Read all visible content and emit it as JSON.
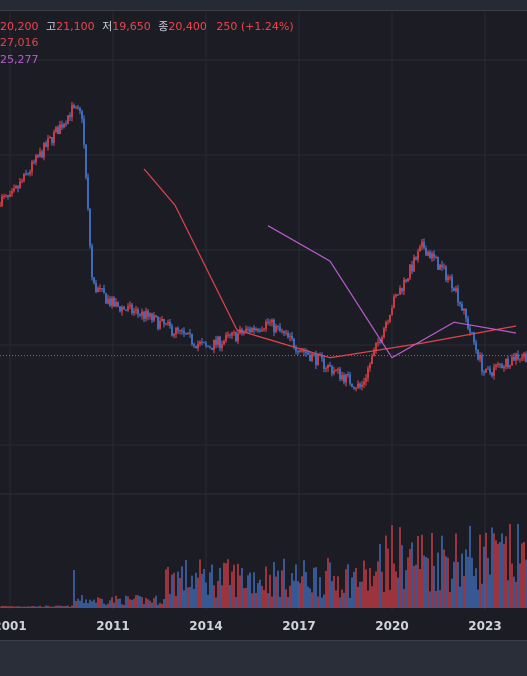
{
  "header": {
    "open_value": "20,200",
    "high_label": "고",
    "high_value": "21,100",
    "low_label": "저",
    "low_value": "19,650",
    "close_label": "종",
    "close_value": "20,400",
    "change": "250 (+1.24%)",
    "ma_values": [
      "27,016",
      "25,277"
    ]
  },
  "colors": {
    "up": "#f0434c",
    "down": "#4a7fe0",
    "ma_long": "#e0444c",
    "ma_mid": "#b85ccc",
    "background": "#1c1d24",
    "text_label": "#cfd3dc"
  },
  "chart_data": {
    "type": "line",
    "title": "",
    "xlabel": "",
    "ylabel": "",
    "x_tick_labels": [
      "2001",
      "2011",
      "2014",
      "2017",
      "2020",
      "2023"
    ],
    "price_approx": {
      "x": [
        "2001",
        "2005",
        "2007",
        "2008",
        "2009",
        "2011",
        "2012",
        "2014",
        "2016",
        "2017",
        "2019",
        "2020",
        "2021",
        "2022",
        "2023",
        "2024"
      ],
      "y": [
        90000,
        160000,
        210000,
        200000,
        40000,
        33000,
        30000,
        22000,
        28000,
        22000,
        15000,
        33000,
        58000,
        40000,
        17000,
        20400
      ]
    },
    "ma_long": {
      "x": [
        "2012",
        "2013",
        "2015",
        "2018",
        "2021",
        "2024"
      ],
      "y": [
        120000,
        85000,
        26000,
        20000,
        23000,
        27016
      ]
    },
    "ma_mid": {
      "x": [
        "2016",
        "2018",
        "2020",
        "2022",
        "2024"
      ],
      "y": [
        70000,
        50000,
        20000,
        28000,
        25277
      ]
    },
    "last_price": 20400,
    "grid": true
  }
}
